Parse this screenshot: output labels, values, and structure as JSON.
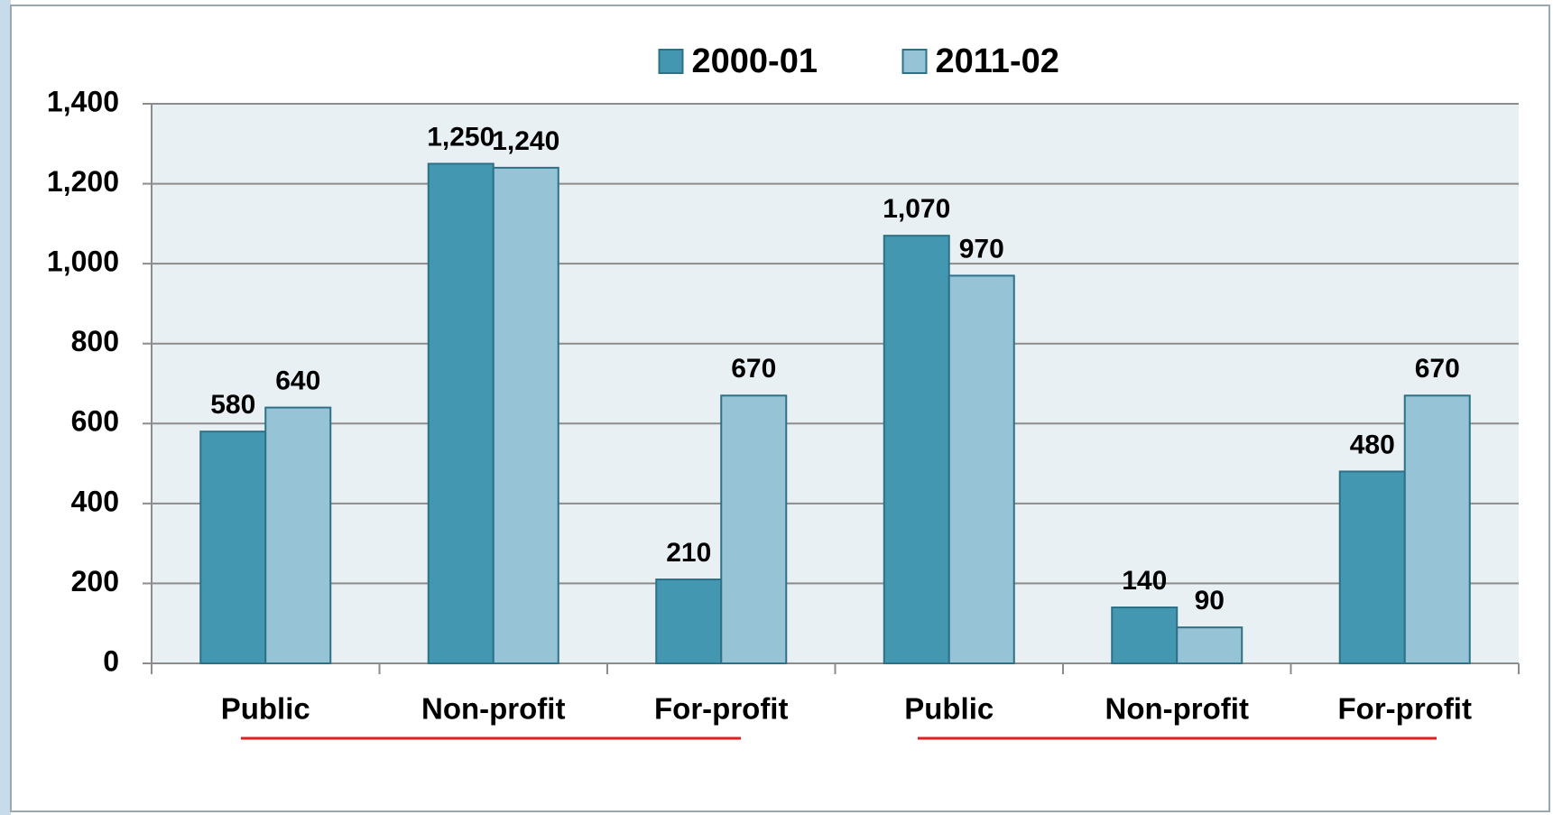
{
  "chart_data": {
    "type": "bar",
    "categories": [
      "Public",
      "Non-profit",
      "For-profit",
      "Public",
      "Non-profit",
      "For-profit"
    ],
    "series": [
      {
        "name": "2000-01",
        "color": "#4397b0",
        "values": [
          580,
          1250,
          210,
          1070,
          140,
          480
        ],
        "value_labels": [
          "580",
          "1,250",
          "210",
          "1,070",
          "140",
          "480"
        ]
      },
      {
        "name": "2011-02",
        "color": "#96c3d5",
        "values": [
          640,
          1240,
          670,
          970,
          90,
          670
        ],
        "value_labels": [
          "640",
          "1,240",
          "670",
          "970",
          "90",
          "670"
        ]
      }
    ],
    "ylim": [
      0,
      1400
    ],
    "yticks": [
      0,
      200,
      400,
      600,
      800,
      {
        "value": 1000,
        "label": "1,000"
      },
      {
        "value": 1200,
        "label": "1,200"
      },
      {
        "value": 1400,
        "label": "1,400"
      }
    ],
    "grid": true,
    "legend": "top"
  }
}
